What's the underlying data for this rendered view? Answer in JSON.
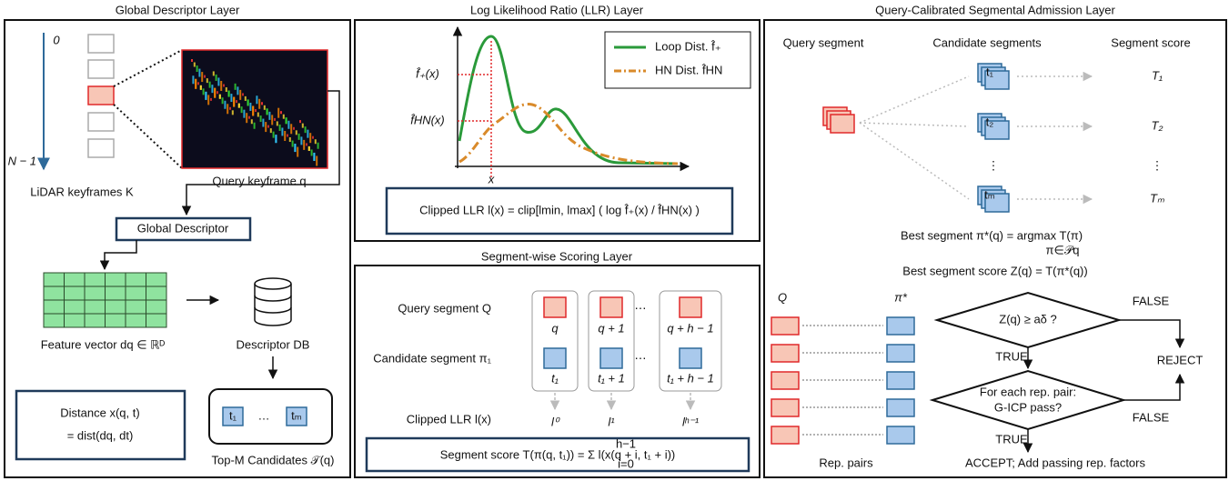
{
  "left_panel": {
    "title": "Global Descriptor Layer",
    "axis_start": "0",
    "axis_end": "N − 1",
    "keyframes_label": "LiDAR keyframes K",
    "query_label": "Query keyframe q",
    "descriptor_box": "Global Descriptor",
    "feature_label": "Feature vector dq ∈ ℝᴰ",
    "db_label": "Descriptor DB",
    "distance_lines": [
      "Distance x(q, t)",
      "= dist(dq, dt)"
    ],
    "candidates": [
      "t₁",
      "…",
      "tₘ"
    ],
    "candidates_label": "Top-M Candidates 𝒯(q)"
  },
  "llr_panel": {
    "title": "Log Likelihood Ratio (LLR) Layer",
    "legend": [
      "Loop Dist. f̂₊",
      "HN Dist. f̂HN"
    ],
    "y_labels": [
      "f̂₊(x)",
      "f̂HN(x)"
    ],
    "x_label": "x",
    "formula": "Clipped LLR  l(x) = clip[lmin, lmax] ( log f̂₊(x) / f̂HN(x) )"
  },
  "scoring_panel": {
    "title": "Segment-wise Scoring Layer",
    "row_labels": [
      "Query segment Q",
      "Candidate segment π₁",
      "Clipped LLR l(x)"
    ],
    "query_items": [
      "q",
      "q + 1",
      "q + h − 1"
    ],
    "candidate_items": [
      "t₁",
      "t₁ + 1",
      "t₁ + h − 1"
    ],
    "llr_items": [
      "l⁰",
      "l¹",
      "lʰ⁻¹"
    ],
    "ellipsis": "⋯",
    "formula": "Segment score T(π(q, t₁)) = Σ l(x(q + i, t₁ + i))",
    "sum_limits": [
      "h−1",
      "i=0"
    ]
  },
  "admission_panel": {
    "title": "Query-Calibrated Segmental Admission Layer",
    "headers": [
      "Query segment",
      "Candidate segments",
      "Segment score"
    ],
    "candidates": [
      "t₁",
      "t₂",
      "tₘ"
    ],
    "scores": [
      "T₁",
      "T₂",
      "Tₘ"
    ],
    "vdots": "⋮",
    "best_segment": "Best segment  π*(q) = argmax T(π)",
    "best_segment_sub": "π∈𝒫q",
    "best_score": "Best segment score  Z(q) = T(π*(q))",
    "pair_headers": [
      "Q",
      "π*"
    ],
    "pairs_label": "Rep. pairs",
    "decision1": "Z(q) ≥ aδ ?",
    "decision2": [
      "For each rep. pair:",
      "G-ICP pass?"
    ],
    "false_label": "FALSE",
    "true_label": "TRUE",
    "reject": "REJECT",
    "accept": "ACCEPT; Add passing rep. factors"
  }
}
